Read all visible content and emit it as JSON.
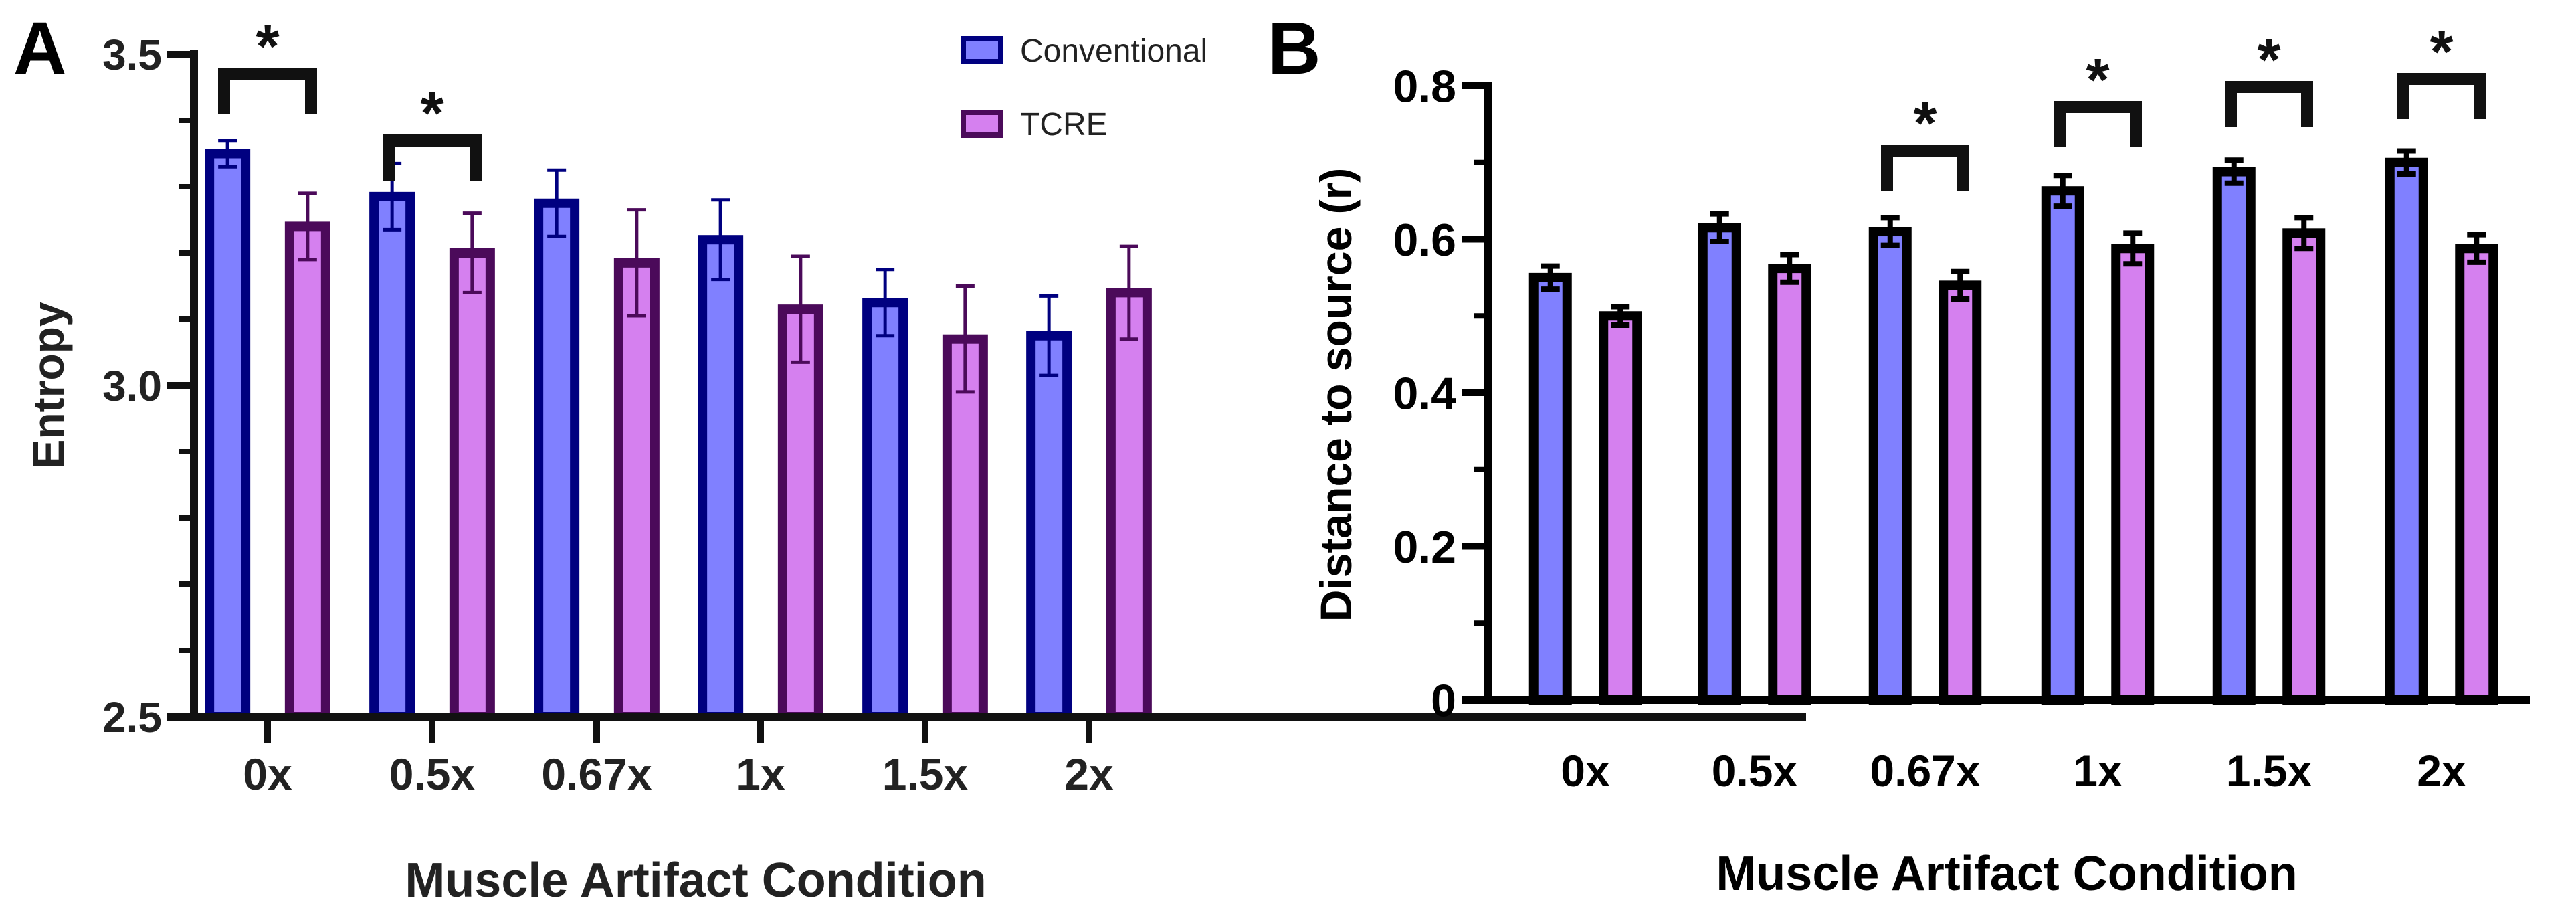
{
  "chart_data": [
    {
      "panel_label": "A",
      "type": "bar",
      "title": "",
      "xlabel": "Muscle Artifact Condition",
      "ylabel": "Entropy",
      "ylim": [
        2.5,
        3.5
      ],
      "yticks": [
        "2.5",
        "3.0",
        "3.5"
      ],
      "categories": [
        "0x",
        "0.5x",
        "0.67x",
        "1x",
        "1.5x",
        "2x"
      ],
      "legend": {
        "placement": "top-right",
        "entries": [
          "Conventional",
          "TCRE"
        ]
      },
      "series": [
        {
          "name": "Conventional",
          "values": [
            3.35,
            3.285,
            3.275,
            3.22,
            3.125,
            3.075
          ],
          "error": [
            0.02,
            0.05,
            0.05,
            0.06,
            0.05,
            0.06
          ],
          "fill": "#8080ff",
          "stroke": "#000080"
        },
        {
          "name": "TCRE",
          "values": [
            3.24,
            3.2,
            3.185,
            3.115,
            3.07,
            3.14
          ],
          "error": [
            0.05,
            0.06,
            0.08,
            0.08,
            0.08,
            0.07
          ],
          "fill": "#d580ef",
          "stroke": "#4b0a5a"
        }
      ],
      "significance": [
        {
          "category": "0x",
          "mark": "*"
        },
        {
          "category": "0.5x",
          "mark": "*"
        }
      ]
    },
    {
      "panel_label": "B",
      "type": "bar",
      "title": "",
      "xlabel": "Muscle Artifact Condition",
      "ylabel": "Distance to source (r)",
      "ylim": [
        0,
        0.8
      ],
      "yticks": [
        "0",
        "0.2",
        "0.4",
        "0.6",
        "0.8"
      ],
      "categories": [
        "0x",
        "0.5x",
        "0.67x",
        "1x",
        "1.5x",
        "2x"
      ],
      "series": [
        {
          "name": "Conventional",
          "values": [
            0.55,
            0.615,
            0.61,
            0.663,
            0.688,
            0.7
          ],
          "error": [
            0.015,
            0.018,
            0.018,
            0.02,
            0.015,
            0.015
          ],
          "fill": "#8080ff",
          "stroke": "#000000"
        },
        {
          "name": "TCRE",
          "values": [
            0.5,
            0.562,
            0.54,
            0.588,
            0.608,
            0.588
          ],
          "error": [
            0.012,
            0.018,
            0.018,
            0.02,
            0.02,
            0.018
          ],
          "fill": "#d580ef",
          "stroke": "#000000"
        }
      ],
      "significance": [
        {
          "category": "0.67x",
          "mark": "*"
        },
        {
          "category": "1x",
          "mark": "*"
        },
        {
          "category": "1.5x",
          "mark": "*"
        },
        {
          "category": "2x",
          "mark": "*"
        }
      ]
    }
  ]
}
